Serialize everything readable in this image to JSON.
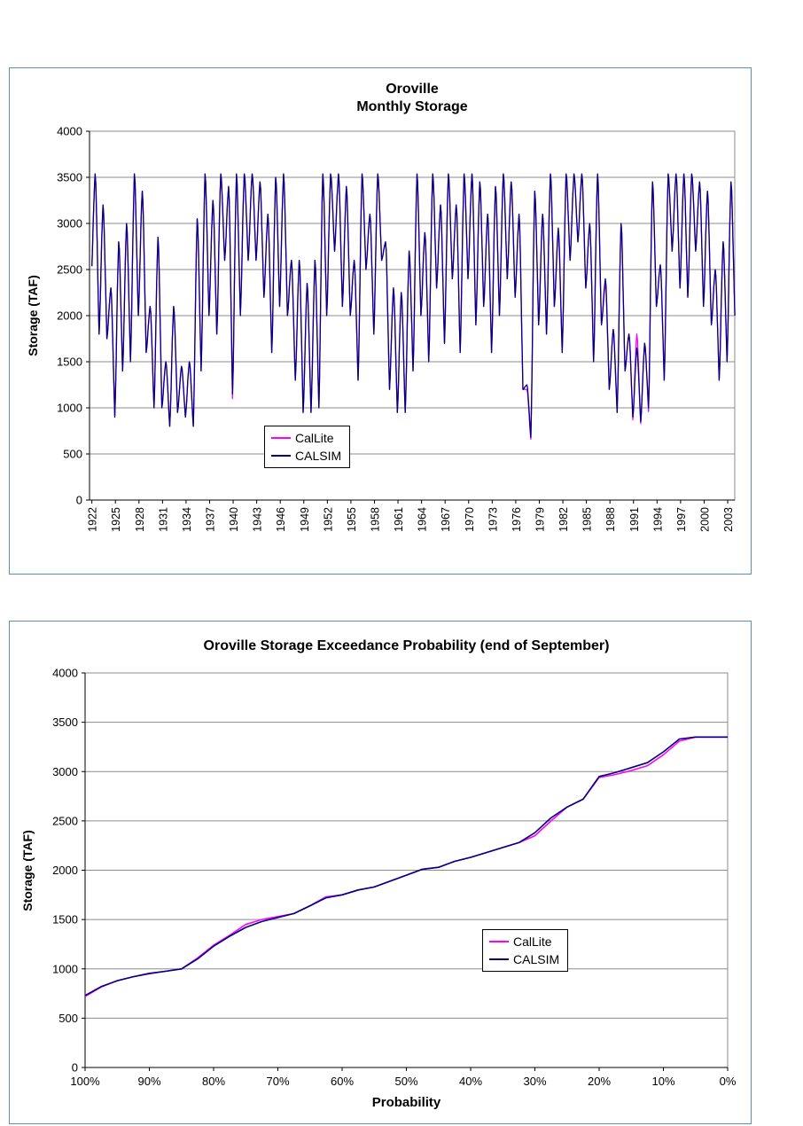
{
  "colors": {
    "callite": "#ff00ff",
    "calsim": "#000080",
    "grid": "#8c8c8c",
    "axis": "#000000",
    "panel_border": "#5b8db8",
    "page_bg": "#ffffff"
  },
  "chart_data": [
    {
      "type": "line",
      "title_line1": "Oroville",
      "title_line2": "Monthly Storage",
      "ylabel": "Storage (TAF)",
      "ylim": [
        0,
        4000
      ],
      "y_ticks": [
        0,
        500,
        1000,
        1500,
        2000,
        2500,
        3000,
        3500,
        4000
      ],
      "x_ticks": [
        1922,
        1925,
        1928,
        1931,
        1934,
        1937,
        1940,
        1943,
        1946,
        1949,
        1952,
        1955,
        1958,
        1961,
        1964,
        1967,
        1970,
        1973,
        1976,
        1979,
        1982,
        1985,
        1988,
        1991,
        1994,
        1997,
        2000,
        2003
      ],
      "x_range": [
        1921.7,
        2003.9
      ],
      "start_year": 1922,
      "initial_storage": 2400,
      "storage_cap": 3537,
      "legend_position": "bottom-center",
      "series": [
        {
          "name": "CalLite",
          "color": "callite",
          "annual_peaks": [
            3537,
            3200,
            2300,
            2800,
            3000,
            3537,
            3350,
            2100,
            2850,
            1500,
            2100,
            1450,
            1500,
            3050,
            3537,
            3250,
            3537,
            3400,
            3537,
            3537,
            3537,
            3450,
            3100,
            3500,
            3537,
            2600,
            2600,
            2350,
            2600,
            3537,
            3537,
            3537,
            3400,
            2600,
            3537,
            3100,
            3537,
            2800,
            2300,
            2250,
            2700,
            3537,
            2900,
            3537,
            3200,
            3537,
            3200,
            3537,
            3537,
            3450,
            3100,
            3400,
            3537,
            3450,
            3100,
            1200,
            3350,
            3100,
            3537,
            2900,
            3537,
            3537,
            3537,
            3000,
            3537,
            2350,
            1850,
            3000,
            1800,
            1800,
            1700,
            3450,
            2550,
            3537,
            3537,
            3537,
            3537,
            3450,
            3350,
            2500,
            2800,
            3450
          ],
          "annual_troughs": [
            1800,
            1750,
            900,
            1400,
            1500,
            2000,
            1600,
            1000,
            1000,
            800,
            950,
            900,
            800,
            1400,
            2000,
            1800,
            2600,
            1100,
            2000,
            2600,
            2600,
            2200,
            1600,
            2100,
            2000,
            1300,
            950,
            950,
            1000,
            2000,
            2700,
            2100,
            2000,
            1300,
            2500,
            1800,
            2600,
            1200,
            950,
            950,
            1400,
            2000,
            1500,
            2300,
            1700,
            2400,
            1600,
            2400,
            1900,
            2100,
            1600,
            2000,
            2400,
            2200,
            1200,
            660,
            1900,
            1800,
            2100,
            1600,
            2600,
            2800,
            2300,
            1500,
            1900,
            1200,
            950,
            1400,
            870,
            830,
            960,
            2100,
            1300,
            2700,
            2300,
            2200,
            2700,
            2100,
            1900,
            1300,
            1500,
            2000
          ]
        },
        {
          "name": "CALSIM",
          "color": "calsim",
          "annual_peaks": [
            3537,
            3200,
            2300,
            2800,
            3000,
            3537,
            3350,
            2100,
            2850,
            1500,
            2100,
            1450,
            1500,
            3050,
            3537,
            3250,
            3537,
            3400,
            3537,
            3537,
            3537,
            3450,
            3100,
            3500,
            3537,
            2600,
            2600,
            2350,
            2600,
            3537,
            3537,
            3537,
            3400,
            2600,
            3537,
            3100,
            3537,
            2800,
            2300,
            2250,
            2700,
            3537,
            2900,
            3537,
            3200,
            3537,
            3200,
            3537,
            3537,
            3450,
            3100,
            3400,
            3537,
            3450,
            3100,
            1250,
            3350,
            3100,
            3537,
            2950,
            3537,
            3537,
            3537,
            3000,
            3537,
            2400,
            1850,
            3000,
            1800,
            1650,
            1700,
            3450,
            2550,
            3537,
            3537,
            3537,
            3537,
            3450,
            3350,
            2500,
            2800,
            3450
          ],
          "annual_troughs": [
            1800,
            1750,
            900,
            1400,
            1500,
            2000,
            1600,
            1000,
            1000,
            800,
            950,
            900,
            800,
            1400,
            2000,
            1800,
            2600,
            1150,
            2000,
            2600,
            2600,
            2200,
            1600,
            2100,
            2000,
            1300,
            950,
            950,
            1000,
            2000,
            2700,
            2100,
            2000,
            1300,
            2500,
            1800,
            2600,
            1200,
            950,
            950,
            1400,
            2000,
            1500,
            2300,
            1700,
            2400,
            1600,
            2400,
            1900,
            2100,
            1600,
            2000,
            2400,
            2200,
            1200,
            680,
            1900,
            1800,
            2100,
            1600,
            2600,
            2800,
            2300,
            1500,
            1900,
            1200,
            950,
            1400,
            900,
            850,
            1000,
            2100,
            1300,
            2700,
            2300,
            2200,
            2700,
            2100,
            1900,
            1300,
            1500,
            2000
          ]
        }
      ]
    },
    {
      "type": "line",
      "title": "Oroville Storage Exceedance Probability (end of September)",
      "xlabel": "Probability",
      "ylabel": "Storage (TAF)",
      "ylim": [
        0,
        4000
      ],
      "y_ticks": [
        0,
        500,
        1000,
        1500,
        2000,
        2500,
        3000,
        3500,
        4000
      ],
      "x_tick_labels": [
        "100%",
        "90%",
        "80%",
        "70%",
        "60%",
        "50%",
        "40%",
        "30%",
        "20%",
        "10%",
        "0%"
      ],
      "x_tick_values": [
        100,
        90,
        80,
        70,
        60,
        50,
        40,
        30,
        20,
        10,
        0
      ],
      "x_axis_reversed": true,
      "legend_position": "right-center",
      "probabilities": [
        100,
        97.5,
        95,
        92.5,
        90,
        87.5,
        85,
        82.5,
        80,
        77.5,
        75,
        72.5,
        70,
        67.5,
        65,
        62.5,
        60,
        57.5,
        55,
        52.5,
        50,
        47.5,
        45,
        42.5,
        40,
        37.5,
        35,
        32.5,
        30,
        27.5,
        25,
        22.5,
        20,
        17.5,
        15,
        12.5,
        10,
        7.5,
        5,
        2.5,
        0
      ],
      "series": [
        {
          "name": "CalLite",
          "color": "callite",
          "values": [
            720,
            815,
            880,
            920,
            950,
            975,
            1000,
            1110,
            1240,
            1340,
            1450,
            1500,
            1530,
            1560,
            1640,
            1730,
            1750,
            1800,
            1830,
            1890,
            1950,
            2010,
            2030,
            2090,
            2130,
            2180,
            2230,
            2280,
            2350,
            2500,
            2640,
            2720,
            2940,
            2970,
            3010,
            3060,
            3170,
            3310,
            3350,
            3350,
            3350
          ]
        },
        {
          "name": "CALSIM",
          "color": "calsim",
          "values": [
            730,
            820,
            880,
            920,
            955,
            975,
            1000,
            1100,
            1230,
            1330,
            1420,
            1480,
            1520,
            1560,
            1640,
            1720,
            1750,
            1800,
            1830,
            1890,
            1950,
            2010,
            2030,
            2090,
            2130,
            2180,
            2230,
            2280,
            2380,
            2530,
            2640,
            2720,
            2950,
            2990,
            3040,
            3090,
            3200,
            3330,
            3350,
            3350,
            3350
          ]
        }
      ]
    }
  ]
}
